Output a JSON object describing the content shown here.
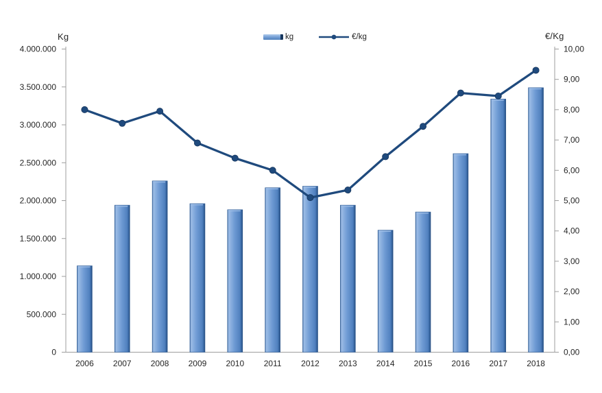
{
  "chart_data": {
    "type": "bar",
    "subtype": "combo-bar-line-dual-axis",
    "title": "",
    "grid": false,
    "categories": [
      "2006",
      "2007",
      "2008",
      "2009",
      "2010",
      "2011",
      "2012",
      "2013",
      "2014",
      "2015",
      "2016",
      "2017",
      "2018"
    ],
    "series": [
      {
        "name": "kg",
        "type": "bar",
        "axis": "left",
        "values": [
          1140000,
          1940000,
          2260000,
          1960000,
          1880000,
          2170000,
          2190000,
          1940000,
          1610000,
          1850000,
          2620000,
          3340000,
          3490000
        ]
      },
      {
        "name": "€/kg",
        "type": "line",
        "axis": "right",
        "values": [
          8.0,
          7.55,
          7.95,
          6.9,
          6.4,
          6.0,
          5.1,
          5.35,
          6.45,
          7.45,
          8.55,
          8.45,
          9.3
        ]
      }
    ],
    "left_axis": {
      "title": "Kg",
      "min": 0,
      "max": 4000000,
      "tick_step": 500000,
      "tick_labels": [
        "0",
        "500.000",
        "1.000.000",
        "1.500.000",
        "2.000.000",
        "2.500.000",
        "3.000.000",
        "3.500.000",
        "4.000.000"
      ]
    },
    "right_axis": {
      "title": "€/Kg",
      "min": 0,
      "max": 10,
      "tick_step": 1,
      "tick_labels": [
        "0,00",
        "1,00",
        "2,00",
        "3,00",
        "4,00",
        "5,00",
        "6,00",
        "7,00",
        "8,00",
        "9,00",
        "10,00"
      ]
    },
    "legend": {
      "position": "top",
      "entries": [
        "kg",
        "€/kg"
      ]
    },
    "colors": {
      "bar": "#6f9bd4",
      "bar_highlight": "#9dbde6",
      "bar_shadow": "#1f3f66",
      "bar_border": "#2e5b94",
      "line": "#1f4a7d",
      "axis": "#9c9c9c",
      "text": "#262626"
    }
  }
}
